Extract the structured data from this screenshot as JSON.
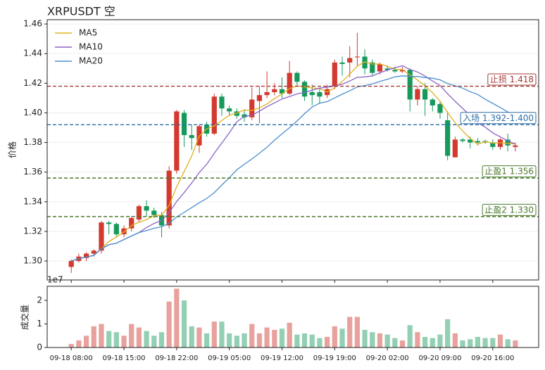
{
  "chart_data": [
    {
      "type": "candlestick",
      "title": "XRPUSDT 空",
      "ylabel": "价格",
      "xlim": [
        -3.2,
        62.1
      ],
      "ylim": [
        1.2872,
        1.4629
      ],
      "yticks": [
        {
          "value": 1.3,
          "label": "1.30"
        },
        1.32,
        1.34,
        1.36,
        1.38,
        {
          "value": 1.4,
          "label": "1.40"
        },
        1.42,
        1.44,
        1.46
      ],
      "grid": true,
      "legend": "upper left",
      "up_color": "#d3392e",
      "down_color": "#159a5c",
      "open": [
        1.296,
        1.3,
        1.302,
        1.305,
        1.307,
        1.326,
        1.325,
        1.318,
        1.322,
        1.328,
        1.337,
        1.334,
        1.331,
        1.324,
        1.361,
        1.4,
        1.385,
        1.378,
        1.392,
        1.386,
        1.411,
        1.403,
        1.401,
        1.399,
        1.397,
        1.408,
        1.412,
        1.414,
        1.416,
        1.413,
        1.427,
        1.421,
        1.414,
        1.414,
        1.412,
        1.418,
        1.434,
        1.434,
        1.438,
        1.438,
        1.434,
        1.428,
        1.43,
        1.429,
        1.428,
        1.429,
        1.409,
        1.416,
        1.409,
        1.406,
        1.395,
        1.37,
        1.382,
        1.382,
        1.381,
        1.381,
        1.38,
        1.377,
        1.382,
        1.377
      ],
      "high": [
        1.301,
        1.305,
        1.306,
        1.308,
        1.327,
        1.327,
        1.326,
        1.324,
        1.33,
        1.338,
        1.341,
        1.336,
        1.333,
        1.364,
        1.402,
        1.402,
        1.392,
        1.392,
        1.394,
        1.413,
        1.413,
        1.405,
        1.403,
        1.402,
        1.417,
        1.418,
        1.428,
        1.42,
        1.424,
        1.435,
        1.428,
        1.422,
        1.419,
        1.417,
        1.419,
        1.436,
        1.438,
        1.445,
        1.454,
        1.443,
        1.436,
        1.434,
        1.432,
        1.431,
        1.431,
        1.43,
        1.418,
        1.42,
        1.41,
        1.408,
        1.401,
        1.384,
        1.383,
        1.384,
        1.383,
        1.382,
        1.382,
        1.383,
        1.386,
        1.38
      ],
      "low": [
        1.292,
        1.299,
        1.3,
        1.303,
        1.305,
        1.318,
        1.316,
        1.316,
        1.32,
        1.326,
        1.33,
        1.329,
        1.316,
        1.322,
        1.359,
        1.377,
        1.375,
        1.373,
        1.384,
        1.385,
        1.398,
        1.398,
        1.396,
        1.394,
        1.395,
        1.393,
        1.41,
        1.412,
        1.41,
        1.412,
        1.418,
        1.408,
        1.405,
        1.406,
        1.41,
        1.416,
        1.425,
        1.424,
        1.432,
        1.426,
        1.425,
        1.426,
        1.428,
        1.427,
        1.427,
        1.401,
        1.405,
        1.398,
        1.401,
        1.396,
        1.368,
        1.37,
        1.38,
        1.376,
        1.378,
        1.379,
        1.375,
        1.375,
        1.374,
        1.374
      ],
      "close": [
        1.3,
        1.303,
        1.305,
        1.307,
        1.326,
        1.325,
        1.318,
        1.322,
        1.329,
        1.337,
        1.334,
        1.331,
        1.324,
        1.361,
        1.401,
        1.385,
        1.383,
        1.391,
        1.386,
        1.411,
        1.403,
        1.401,
        1.398,
        1.397,
        1.409,
        1.412,
        1.414,
        1.416,
        1.413,
        1.427,
        1.421,
        1.411,
        1.412,
        1.411,
        1.416,
        1.434,
        1.433,
        1.437,
        1.438,
        1.43,
        1.427,
        1.433,
        1.429,
        1.428,
        1.429,
        1.409,
        1.416,
        1.409,
        1.405,
        1.4,
        1.371,
        1.382,
        1.381,
        1.38,
        1.38,
        1.38,
        1.377,
        1.382,
        1.378,
        1.378
      ],
      "series": [
        {
          "name": "MA5",
          "color": "#e0b01c",
          "values": [
            1.3,
            1.3015,
            1.3027,
            1.3038,
            1.3082,
            1.3132,
            1.3162,
            1.3196,
            1.324,
            1.3262,
            1.328,
            1.3306,
            1.331,
            1.3374,
            1.3502,
            1.3604,
            1.3708,
            1.3842,
            1.3892,
            1.3912,
            1.3948,
            1.3984,
            1.3998,
            1.402,
            1.4016,
            1.4034,
            1.406,
            1.4096,
            1.4128,
            1.4164,
            1.4182,
            1.4176,
            1.4168,
            1.4164,
            1.4142,
            1.4168,
            1.4212,
            1.4262,
            1.4316,
            1.4344,
            1.433,
            1.433,
            1.4314,
            1.4294,
            1.4292,
            1.4256,
            1.4222,
            1.4182,
            1.4136,
            1.4078,
            1.4002,
            1.3934,
            1.3878,
            1.3828,
            1.3788,
            1.3806,
            1.3796,
            1.3798,
            1.3794,
            1.379
          ]
        },
        {
          "name": "MA10",
          "color": "#8a63c6",
          "values": [
            1.3,
            1.3015,
            1.3027,
            1.3038,
            1.3082,
            1.311,
            1.312,
            1.3145,
            1.3169,
            1.3192,
            1.3226,
            1.3254,
            1.3273,
            1.3327,
            1.3402,
            1.3462,
            1.3527,
            1.3596,
            1.3653,
            1.3727,
            1.3796,
            1.3866,
            1.394,
            1.3976,
            1.3984,
            1.4011,
            1.4042,
            1.4067,
            1.4094,
            1.411,
            1.4128,
            1.4139,
            1.4153,
            1.4167,
            1.4174,
            1.4181,
            1.4193,
            1.4215,
            1.424,
            1.4243,
            1.4249,
            1.4271,
            1.4288,
            1.4305,
            1.4318,
            1.4293,
            1.4276,
            1.4248,
            1.4215,
            1.4185,
            1.4129,
            1.4078,
            1.403,
            1.3982,
            1.3933,
            1.3904,
            1.3865,
            1.3838,
            1.3811,
            1.3789
          ]
        },
        {
          "name": "MA20",
          "color": "#4a8fcf",
          "values": [
            1.3,
            1.3015,
            1.3027,
            1.3038,
            1.3082,
            1.311,
            1.312,
            1.3145,
            1.3169,
            1.3192,
            1.3206,
            1.3221,
            1.3231,
            1.3255,
            1.3297,
            1.3328,
            1.336,
            1.3393,
            1.3423,
            1.3461,
            1.3513,
            1.3562,
            1.3616,
            1.3653,
            1.3689,
            1.3727,
            1.3768,
            1.3815,
            1.3859,
            1.39,
            1.3945,
            1.3995,
            1.4039,
            1.4066,
            1.4076,
            1.4101,
            1.4126,
            1.4149,
            1.4175,
            1.4184,
            1.4196,
            1.4212,
            1.4227,
            1.4243,
            1.425,
            1.4246,
            1.4246,
            1.4238,
            1.4234,
            1.4223,
            1.4198,
            1.4183,
            1.4167,
            1.4143,
            1.4124,
            1.4092,
            1.4064,
            1.4036,
            1.4006,
            1.3977
          ]
        }
      ],
      "hlines": [
        {
          "value": 1.418,
          "label": "止损 1.418",
          "color": "#a33a36"
        },
        {
          "value": 1.392,
          "label": "入场 1.392-1.400",
          "color": "#2f6ea5"
        },
        {
          "value": 1.356,
          "label": "止盈1 1.356",
          "color": "#4a7a2c"
        },
        {
          "value": 1.33,
          "label": "止盈2 1.330",
          "color": "#4a7a2c"
        }
      ]
    },
    {
      "type": "bar",
      "ylabel": "成交量",
      "offset_label": "1e7",
      "xlim": [
        -3.2,
        62.1
      ],
      "ylim": [
        0,
        2.6
      ],
      "yticks": [
        0,
        1,
        2
      ],
      "up_color": "#e8a19c",
      "down_color": "#93cfb3",
      "categories": [
        "09-18 08:00",
        null,
        null,
        null,
        null,
        null,
        null,
        "09-18 15:00",
        null,
        null,
        null,
        null,
        null,
        null,
        "09-18 22:00",
        null,
        null,
        null,
        null,
        null,
        null,
        "09-19 05:00",
        null,
        null,
        null,
        null,
        null,
        null,
        "09-19 12:00",
        null,
        null,
        null,
        null,
        null,
        null,
        "09-19 19:00",
        null,
        null,
        null,
        null,
        null,
        null,
        "09-20 02:00",
        null,
        null,
        null,
        null,
        null,
        null,
        "09-20 09:00",
        null,
        null,
        null,
        null,
        null,
        null,
        "09-20 16:00",
        null,
        null,
        null
      ],
      "values": [
        0.15,
        0.3,
        0.5,
        0.9,
        1.0,
        0.7,
        0.65,
        0.5,
        1.0,
        0.85,
        0.7,
        0.5,
        0.65,
        1.95,
        2.5,
        2.0,
        0.9,
        0.85,
        0.6,
        1.1,
        1.1,
        0.6,
        0.5,
        0.6,
        1.0,
        0.6,
        0.85,
        0.75,
        0.8,
        1.05,
        0.55,
        0.6,
        0.55,
        0.4,
        0.45,
        0.9,
        0.8,
        1.3,
        1.3,
        0.75,
        0.65,
        0.6,
        0.55,
        0.4,
        0.3,
        0.95,
        0.65,
        0.45,
        0.4,
        0.55,
        1.2,
        0.6,
        0.3,
        0.35,
        0.45,
        0.4,
        0.4,
        0.55,
        0.35,
        0.3
      ]
    }
  ]
}
